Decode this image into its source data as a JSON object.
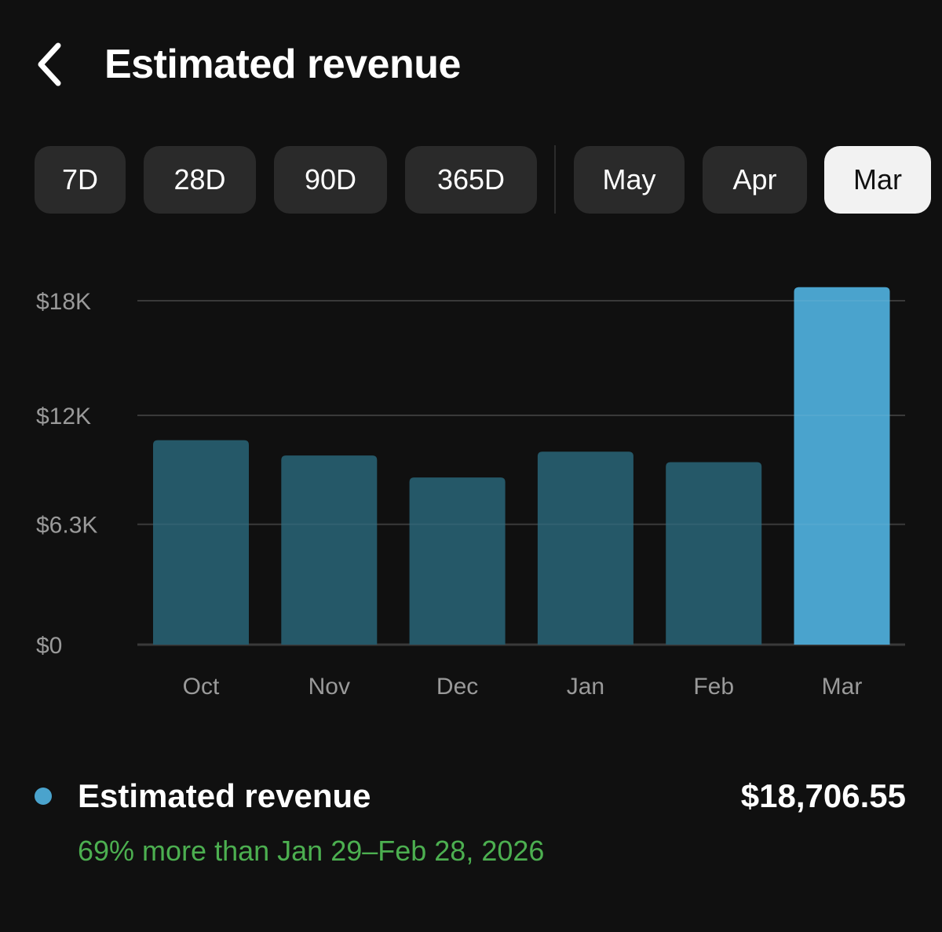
{
  "header": {
    "title": "Estimated revenue",
    "back_icon": "chevron-left-icon"
  },
  "ranges": [
    {
      "label": "7D",
      "selected": false
    },
    {
      "label": "28D",
      "selected": false
    },
    {
      "label": "90D",
      "selected": false
    },
    {
      "label": "365D",
      "selected": false
    },
    {
      "label": "May",
      "selected": false
    },
    {
      "label": "Apr",
      "selected": false
    },
    {
      "label": "Mar",
      "selected": true
    }
  ],
  "chart_data": {
    "type": "bar",
    "categories": [
      "Oct",
      "Nov",
      "Dec",
      "Jan",
      "Feb",
      "Mar"
    ],
    "values": [
      10700,
      9900,
      8750,
      10100,
      9550,
      18706.55
    ],
    "highlight_index": 5,
    "yticks": [
      0,
      6300,
      12000,
      18000
    ],
    "ytick_labels": [
      "$0",
      "$6.3K",
      "$12K",
      "$18K"
    ],
    "ylim": [
      0,
      18000
    ],
    "grid": true,
    "colors": {
      "bar": "#255868",
      "highlight": "#4aa3cd",
      "grid": "#2e2e2e",
      "axis": "#3a3a3a",
      "tick_text": "#9a9a9a"
    }
  },
  "summary": {
    "label": "Estimated revenue",
    "value": "$18,706.55",
    "comparison": "69% more than Jan 29–Feb 28, 2026",
    "colors": {
      "dot": "#4aa3cd",
      "comparison": "#4caf50"
    }
  }
}
